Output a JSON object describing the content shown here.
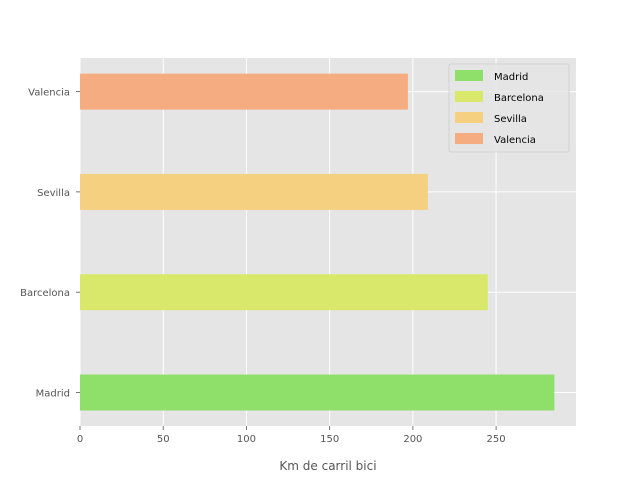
{
  "chart_data": {
    "type": "bar",
    "orientation": "horizontal",
    "categories": [
      "Madrid",
      "Barcelona",
      "Sevilla",
      "Valencia"
    ],
    "values": [
      285,
      245,
      209,
      197
    ],
    "colors": [
      "#8ee06a",
      "#d9e86a",
      "#f5d080",
      "#f5ac80"
    ],
    "title": "",
    "xlabel": "Km de carril bici",
    "ylabel": "",
    "xlim": [
      0,
      298
    ],
    "xticks": [
      0,
      50,
      100,
      150,
      200,
      250
    ],
    "grid": true,
    "background": "#e5e5e5",
    "legend": {
      "position": "top-right",
      "entries": [
        "Madrid",
        "Barcelona",
        "Sevilla",
        "Valencia"
      ]
    }
  }
}
